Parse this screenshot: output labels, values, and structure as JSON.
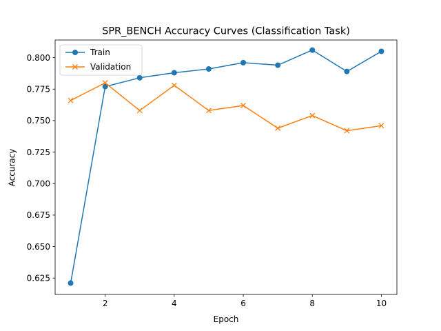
{
  "chart_data": {
    "type": "line",
    "title": "SPR_BENCH Accuracy Curves (Classification Task)",
    "xlabel": "Epoch",
    "ylabel": "Accuracy",
    "x": [
      1,
      2,
      3,
      4,
      5,
      6,
      7,
      8,
      9,
      10
    ],
    "xlim": [
      0.55,
      10.45
    ],
    "ylim": [
      0.612,
      0.814
    ],
    "xticks": [
      2,
      4,
      6,
      8,
      10
    ],
    "yticks": [
      0.625,
      0.65,
      0.675,
      0.7,
      0.725,
      0.75,
      0.775,
      0.8
    ],
    "ytick_labels": [
      "0.625",
      "0.650",
      "0.675",
      "0.700",
      "0.725",
      "0.750",
      "0.775",
      "0.800"
    ],
    "grid": false,
    "legend_position": "top-left",
    "series": [
      {
        "name": "Train",
        "marker": "circle",
        "color": "#1f77b4",
        "values": [
          0.621,
          0.777,
          0.784,
          0.788,
          0.791,
          0.796,
          0.794,
          0.806,
          0.789,
          0.805
        ]
      },
      {
        "name": "Validation",
        "marker": "x",
        "color": "#ff7f0e",
        "values": [
          0.766,
          0.78,
          0.758,
          0.778,
          0.758,
          0.762,
          0.744,
          0.754,
          0.742,
          0.746
        ]
      }
    ]
  }
}
